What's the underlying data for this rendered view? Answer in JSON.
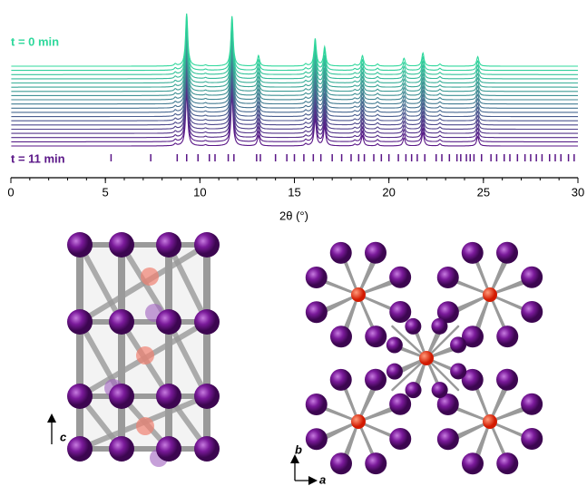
{
  "chart_data": {
    "type": "waterfall",
    "xlabel": "2θ (°)",
    "xlim": [
      0,
      30
    ],
    "xticks": [
      0,
      5,
      10,
      15,
      20,
      25,
      30
    ],
    "top_label": "t = 0 min",
    "bottom_label": "t = 11 min",
    "traces": 20,
    "color_start": "#2fd89c",
    "color_end": "#5a1687",
    "peaks": {
      "x": [
        8.7,
        9.3,
        10.3,
        11.7,
        13.1,
        15.6,
        16.1,
        16.6,
        18.2,
        18.6,
        19.4,
        20.8,
        21.8,
        22.7,
        24.7
      ],
      "heights": [
        4,
        100,
        2,
        95,
        20,
        4,
        52,
        36,
        3,
        20,
        4,
        15,
        25,
        4,
        18
      ]
    },
    "reflections": [
      5.3,
      7.4,
      8.8,
      9.3,
      9.9,
      10.5,
      10.8,
      11.5,
      11.8,
      13.0,
      13.2,
      14.0,
      14.6,
      15.0,
      15.5,
      16.0,
      16.4,
      17.0,
      17.5,
      18.0,
      18.4,
      18.7,
      19.2,
      19.6,
      20.0,
      20.5,
      20.9,
      21.2,
      21.5,
      21.9,
      22.5,
      22.8,
      23.2,
      23.6,
      23.8,
      24.1,
      24.3,
      24.5,
      24.9,
      25.4,
      25.7,
      26.1,
      26.4,
      26.8,
      27.2,
      27.5,
      27.8,
      28.1,
      28.5,
      28.8,
      29.1,
      29.5,
      29.8
    ]
  },
  "figure": {
    "left_axis": "c",
    "right_axes": [
      "b",
      "a"
    ]
  }
}
